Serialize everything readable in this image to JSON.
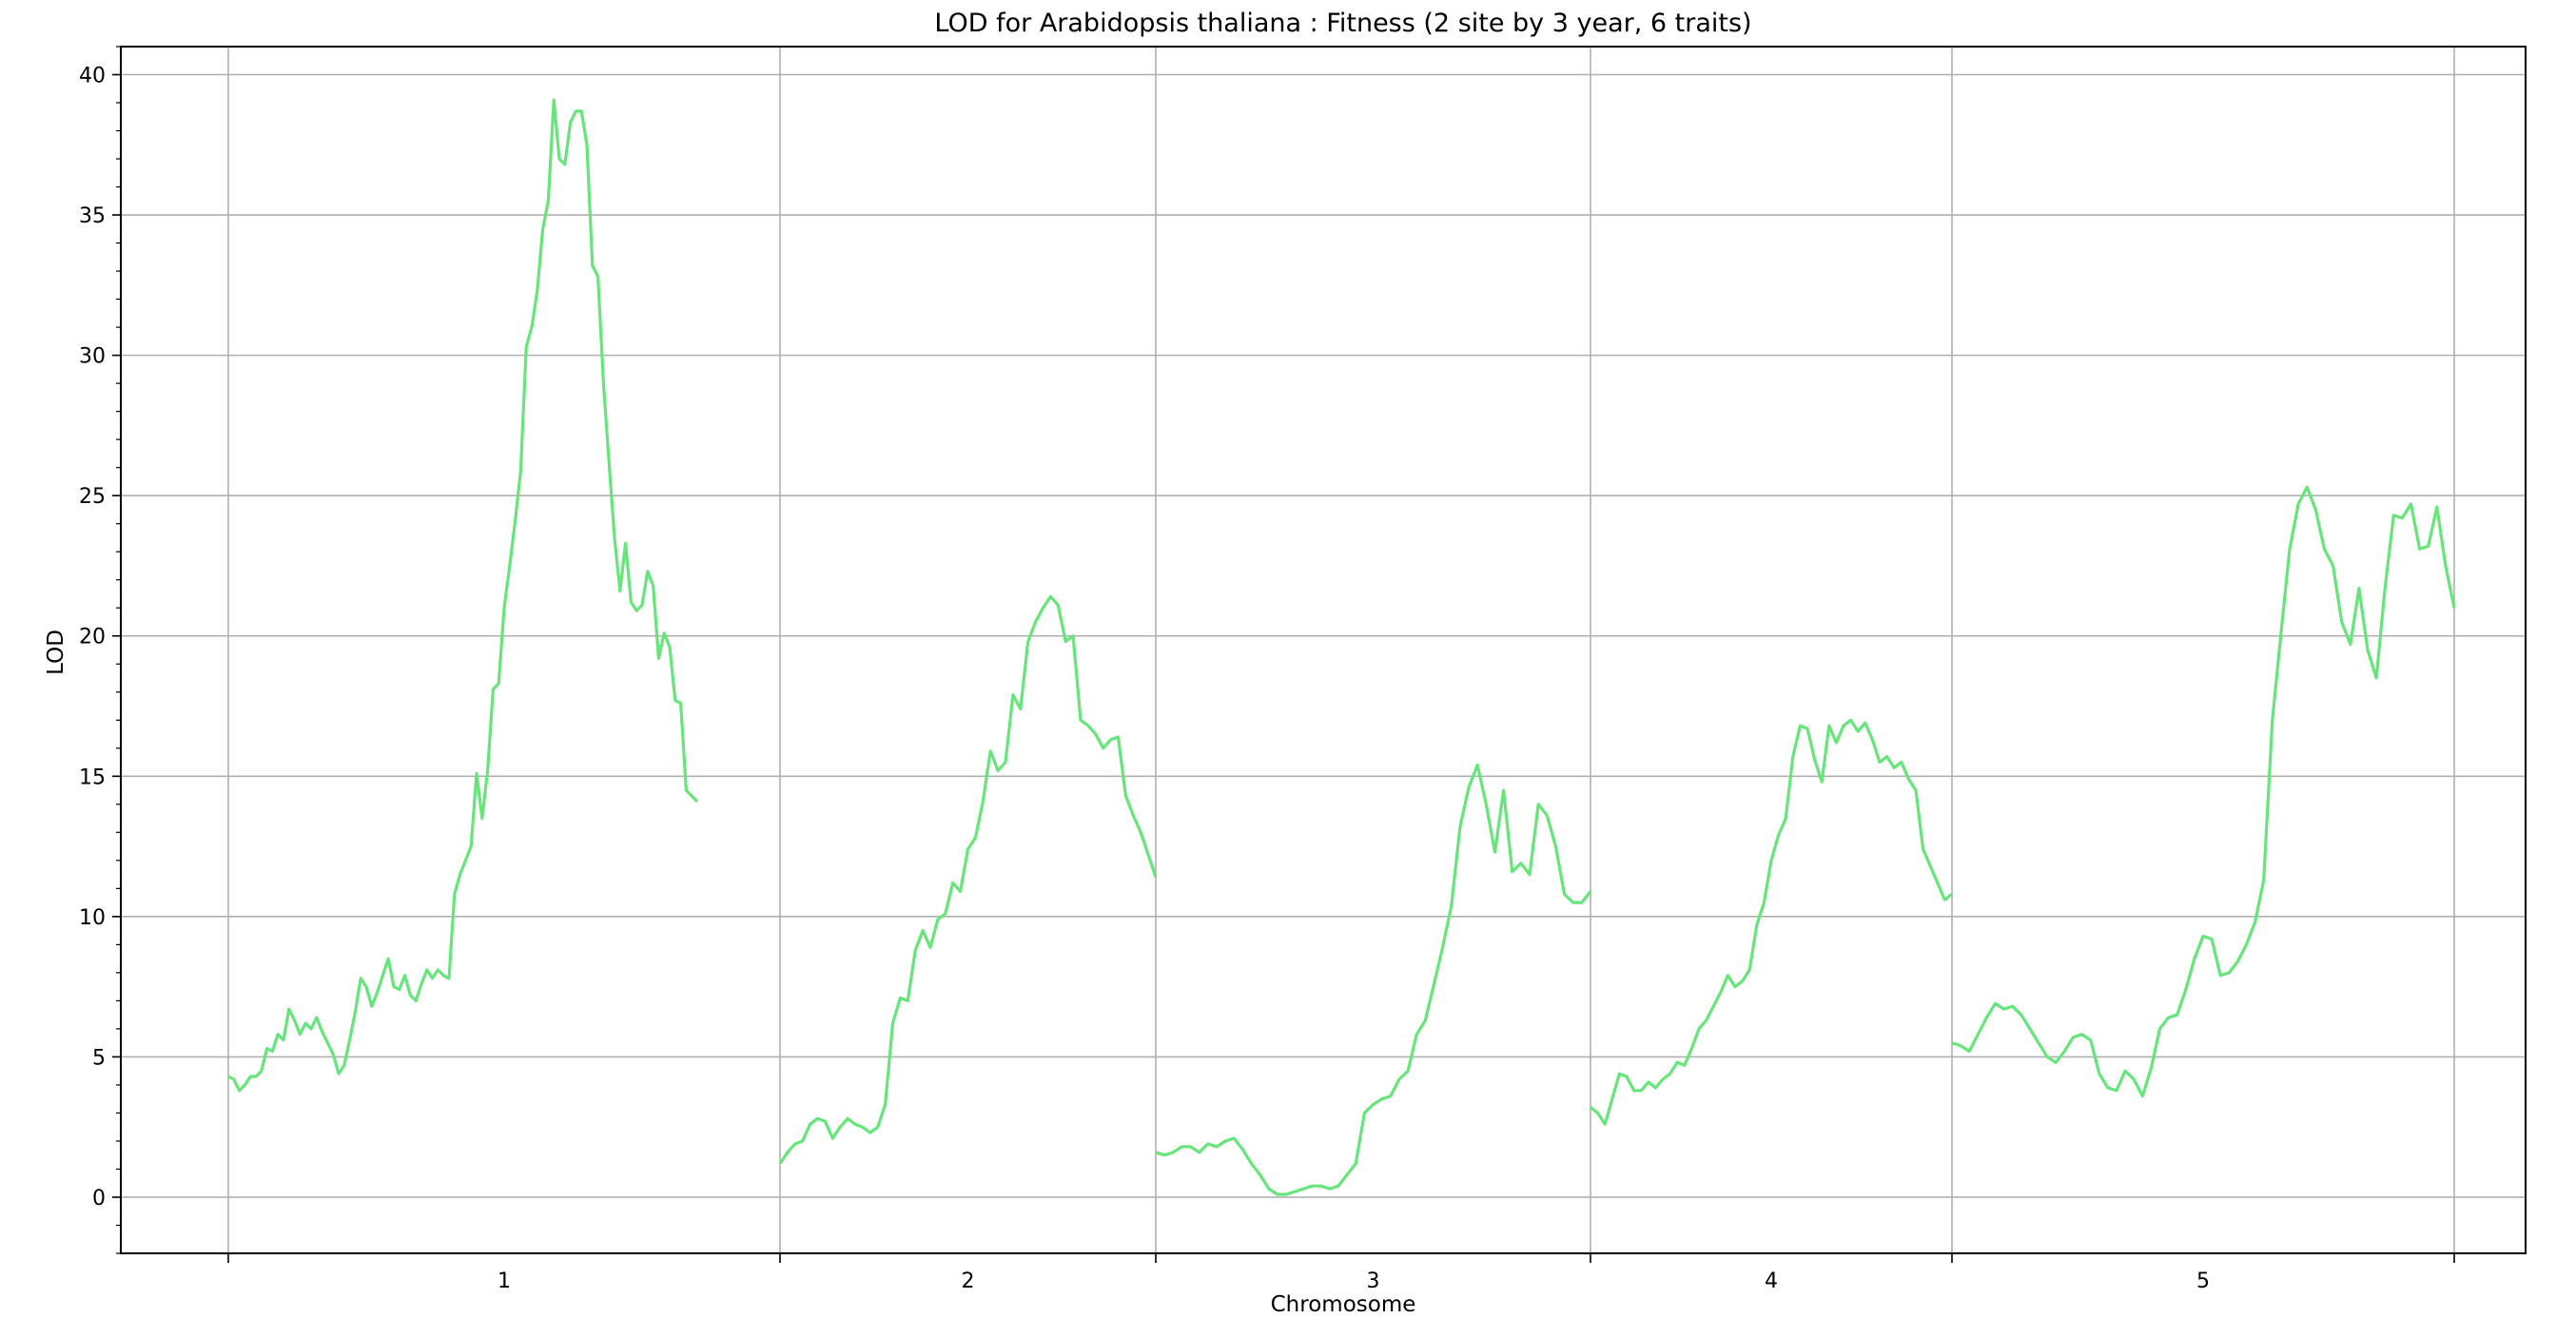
{
  "chart_data": {
    "type": "line",
    "title": "LOD for Arabidopsis thaliana : Fitness (2 site by 3 year, 6 traits)",
    "xlabel": "Chromosome",
    "ylabel": "LOD",
    "ylim": [
      -2,
      41
    ],
    "yticks": [
      0,
      5,
      10,
      15,
      20,
      25,
      30,
      35,
      40
    ],
    "grid": true,
    "line_color": "#66e67a",
    "x_axis_note": "x = position within chromosome as fraction (0 = start, 1 = end)",
    "chromosomes": [
      {
        "label": "1",
        "points": [
          [
            0.0,
            4.3
          ],
          [
            0.01,
            4.2
          ],
          [
            0.02,
            3.8
          ],
          [
            0.03,
            4.0
          ],
          [
            0.04,
            4.3
          ],
          [
            0.05,
            4.3
          ],
          [
            0.06,
            4.5
          ],
          [
            0.07,
            5.3
          ],
          [
            0.08,
            5.2
          ],
          [
            0.09,
            5.8
          ],
          [
            0.1,
            5.6
          ],
          [
            0.11,
            6.7
          ],
          [
            0.12,
            6.3
          ],
          [
            0.13,
            5.8
          ],
          [
            0.14,
            6.2
          ],
          [
            0.15,
            6.0
          ],
          [
            0.16,
            6.4
          ],
          [
            0.17,
            5.9
          ],
          [
            0.18,
            5.5
          ],
          [
            0.19,
            5.1
          ],
          [
            0.2,
            4.4
          ],
          [
            0.21,
            4.7
          ],
          [
            0.22,
            5.6
          ],
          [
            0.23,
            6.6
          ],
          [
            0.24,
            7.8
          ],
          [
            0.25,
            7.5
          ],
          [
            0.26,
            6.8
          ],
          [
            0.27,
            7.3
          ],
          [
            0.28,
            7.9
          ],
          [
            0.29,
            8.5
          ],
          [
            0.3,
            7.5
          ],
          [
            0.31,
            7.4
          ],
          [
            0.32,
            7.9
          ],
          [
            0.33,
            7.2
          ],
          [
            0.34,
            7.0
          ],
          [
            0.35,
            7.6
          ],
          [
            0.36,
            8.1
          ],
          [
            0.37,
            7.8
          ],
          [
            0.38,
            8.1
          ],
          [
            0.39,
            7.9
          ],
          [
            0.4,
            7.8
          ],
          [
            0.41,
            10.8
          ],
          [
            0.42,
            11.5
          ],
          [
            0.43,
            12.0
          ],
          [
            0.44,
            12.5
          ],
          [
            0.45,
            15.1
          ],
          [
            0.46,
            13.5
          ],
          [
            0.47,
            15.2
          ],
          [
            0.48,
            18.1
          ],
          [
            0.49,
            18.3
          ],
          [
            0.5,
            21.0
          ],
          [
            0.51,
            22.5
          ],
          [
            0.52,
            24.1
          ],
          [
            0.53,
            25.9
          ],
          [
            0.54,
            30.3
          ],
          [
            0.55,
            31.0
          ],
          [
            0.56,
            32.3
          ],
          [
            0.57,
            34.5
          ],
          [
            0.58,
            35.5
          ],
          [
            0.59,
            39.1
          ],
          [
            0.6,
            37.0
          ],
          [
            0.61,
            36.8
          ],
          [
            0.62,
            38.3
          ],
          [
            0.63,
            38.7
          ],
          [
            0.64,
            38.7
          ],
          [
            0.65,
            37.5
          ],
          [
            0.66,
            33.2
          ],
          [
            0.67,
            32.8
          ],
          [
            0.68,
            29.0
          ],
          [
            0.69,
            26.2
          ],
          [
            0.7,
            23.5
          ],
          [
            0.71,
            21.6
          ],
          [
            0.72,
            23.3
          ],
          [
            0.73,
            21.2
          ],
          [
            0.74,
            20.9
          ],
          [
            0.75,
            21.1
          ],
          [
            0.76,
            22.3
          ],
          [
            0.77,
            21.8
          ],
          [
            0.78,
            19.2
          ],
          [
            0.79,
            20.1
          ],
          [
            0.8,
            19.6
          ],
          [
            0.81,
            17.7
          ],
          [
            0.82,
            17.6
          ],
          [
            0.83,
            14.5
          ],
          [
            0.84,
            14.3
          ],
          [
            0.85,
            14.1
          ]
        ]
      },
      {
        "label": "2",
        "points": [
          [
            0.0,
            1.2
          ],
          [
            0.02,
            1.6
          ],
          [
            0.04,
            1.9
          ],
          [
            0.06,
            2.0
          ],
          [
            0.08,
            2.6
          ],
          [
            0.1,
            2.8
          ],
          [
            0.12,
            2.7
          ],
          [
            0.14,
            2.1
          ],
          [
            0.16,
            2.5
          ],
          [
            0.18,
            2.8
          ],
          [
            0.2,
            2.6
          ],
          [
            0.22,
            2.5
          ],
          [
            0.24,
            2.3
          ],
          [
            0.26,
            2.5
          ],
          [
            0.28,
            3.3
          ],
          [
            0.3,
            6.2
          ],
          [
            0.32,
            7.1
          ],
          [
            0.34,
            7.0
          ],
          [
            0.36,
            8.8
          ],
          [
            0.38,
            9.5
          ],
          [
            0.4,
            8.9
          ],
          [
            0.42,
            9.9
          ],
          [
            0.44,
            10.1
          ],
          [
            0.46,
            11.2
          ],
          [
            0.48,
            10.9
          ],
          [
            0.5,
            12.4
          ],
          [
            0.52,
            12.8
          ],
          [
            0.54,
            14.1
          ],
          [
            0.56,
            15.9
          ],
          [
            0.58,
            15.2
          ],
          [
            0.6,
            15.5
          ],
          [
            0.62,
            17.9
          ],
          [
            0.64,
            17.4
          ],
          [
            0.66,
            19.8
          ],
          [
            0.68,
            20.5
          ],
          [
            0.7,
            21.0
          ],
          [
            0.72,
            21.4
          ],
          [
            0.74,
            21.1
          ],
          [
            0.76,
            19.8
          ],
          [
            0.78,
            20.0
          ],
          [
            0.8,
            17.0
          ],
          [
            0.82,
            16.8
          ],
          [
            0.84,
            16.5
          ],
          [
            0.86,
            16.0
          ],
          [
            0.88,
            16.3
          ],
          [
            0.9,
            16.4
          ],
          [
            0.92,
            14.3
          ],
          [
            0.94,
            13.6
          ],
          [
            0.96,
            13.0
          ],
          [
            0.98,
            12.2
          ],
          [
            1.0,
            11.4
          ]
        ]
      },
      {
        "label": "3",
        "points": [
          [
            0.0,
            1.6
          ],
          [
            0.02,
            1.5
          ],
          [
            0.04,
            1.6
          ],
          [
            0.06,
            1.8
          ],
          [
            0.08,
            1.8
          ],
          [
            0.1,
            1.6
          ],
          [
            0.12,
            1.9
          ],
          [
            0.14,
            1.8
          ],
          [
            0.16,
            2.0
          ],
          [
            0.18,
            2.1
          ],
          [
            0.2,
            1.7
          ],
          [
            0.22,
            1.2
          ],
          [
            0.24,
            0.8
          ],
          [
            0.26,
            0.3
          ],
          [
            0.28,
            0.1
          ],
          [
            0.3,
            0.1
          ],
          [
            0.32,
            0.2
          ],
          [
            0.34,
            0.3
          ],
          [
            0.36,
            0.4
          ],
          [
            0.38,
            0.4
          ],
          [
            0.4,
            0.3
          ],
          [
            0.42,
            0.4
          ],
          [
            0.44,
            0.8
          ],
          [
            0.46,
            1.2
          ],
          [
            0.48,
            3.0
          ],
          [
            0.5,
            3.3
          ],
          [
            0.52,
            3.5
          ],
          [
            0.54,
            3.6
          ],
          [
            0.56,
            4.2
          ],
          [
            0.58,
            4.5
          ],
          [
            0.6,
            5.8
          ],
          [
            0.62,
            6.3
          ],
          [
            0.64,
            7.6
          ],
          [
            0.66,
            8.9
          ],
          [
            0.68,
            10.4
          ],
          [
            0.7,
            13.2
          ],
          [
            0.72,
            14.6
          ],
          [
            0.74,
            15.4
          ],
          [
            0.76,
            14.0
          ],
          [
            0.78,
            12.3
          ],
          [
            0.8,
            14.5
          ],
          [
            0.82,
            11.6
          ],
          [
            0.84,
            11.9
          ],
          [
            0.86,
            11.5
          ],
          [
            0.88,
            14.0
          ],
          [
            0.9,
            13.6
          ],
          [
            0.92,
            12.5
          ],
          [
            0.94,
            10.8
          ],
          [
            0.96,
            10.5
          ],
          [
            0.98,
            10.5
          ],
          [
            1.0,
            10.9
          ]
        ]
      },
      {
        "label": "4",
        "points": [
          [
            0.0,
            3.2
          ],
          [
            0.02,
            3.0
          ],
          [
            0.04,
            2.6
          ],
          [
            0.06,
            3.5
          ],
          [
            0.08,
            4.4
          ],
          [
            0.1,
            4.3
          ],
          [
            0.12,
            3.8
          ],
          [
            0.14,
            3.8
          ],
          [
            0.16,
            4.1
          ],
          [
            0.18,
            3.9
          ],
          [
            0.2,
            4.2
          ],
          [
            0.22,
            4.4
          ],
          [
            0.24,
            4.8
          ],
          [
            0.26,
            4.7
          ],
          [
            0.28,
            5.3
          ],
          [
            0.3,
            6.0
          ],
          [
            0.32,
            6.3
          ],
          [
            0.34,
            6.8
          ],
          [
            0.36,
            7.3
          ],
          [
            0.38,
            7.9
          ],
          [
            0.4,
            7.5
          ],
          [
            0.42,
            7.7
          ],
          [
            0.44,
            8.1
          ],
          [
            0.46,
            9.7
          ],
          [
            0.48,
            10.5
          ],
          [
            0.5,
            12.0
          ],
          [
            0.52,
            12.9
          ],
          [
            0.54,
            13.5
          ],
          [
            0.56,
            15.7
          ],
          [
            0.58,
            16.8
          ],
          [
            0.6,
            16.7
          ],
          [
            0.62,
            15.6
          ],
          [
            0.64,
            14.8
          ],
          [
            0.66,
            16.8
          ],
          [
            0.68,
            16.2
          ],
          [
            0.7,
            16.8
          ],
          [
            0.72,
            17.0
          ],
          [
            0.74,
            16.6
          ],
          [
            0.76,
            16.9
          ],
          [
            0.78,
            16.3
          ],
          [
            0.8,
            15.5
          ],
          [
            0.82,
            15.7
          ],
          [
            0.84,
            15.3
          ],
          [
            0.86,
            15.5
          ],
          [
            0.88,
            14.9
          ],
          [
            0.9,
            14.5
          ],
          [
            0.92,
            12.4
          ],
          [
            0.94,
            11.8
          ],
          [
            0.96,
            11.2
          ],
          [
            0.98,
            10.6
          ],
          [
            1.0,
            10.8
          ]
        ]
      },
      {
        "label": "5",
        "points": [
          [
            0.0,
            5.5
          ],
          [
            0.02,
            5.4
          ],
          [
            0.04,
            5.2
          ],
          [
            0.06,
            5.8
          ],
          [
            0.08,
            6.4
          ],
          [
            0.1,
            6.9
          ],
          [
            0.12,
            6.7
          ],
          [
            0.14,
            6.8
          ],
          [
            0.16,
            6.5
          ],
          [
            0.18,
            6.0
          ],
          [
            0.2,
            5.5
          ],
          [
            0.22,
            5.0
          ],
          [
            0.24,
            4.8
          ],
          [
            0.26,
            5.2
          ],
          [
            0.28,
            5.7
          ],
          [
            0.3,
            5.8
          ],
          [
            0.32,
            5.6
          ],
          [
            0.34,
            4.4
          ],
          [
            0.36,
            3.9
          ],
          [
            0.38,
            3.8
          ],
          [
            0.4,
            4.5
          ],
          [
            0.42,
            4.2
          ],
          [
            0.44,
            3.6
          ],
          [
            0.46,
            4.6
          ],
          [
            0.48,
            6.0
          ],
          [
            0.5,
            6.4
          ],
          [
            0.52,
            6.5
          ],
          [
            0.54,
            7.4
          ],
          [
            0.56,
            8.5
          ],
          [
            0.58,
            9.3
          ],
          [
            0.6,
            9.2
          ],
          [
            0.62,
            7.9
          ],
          [
            0.64,
            8.0
          ],
          [
            0.66,
            8.4
          ],
          [
            0.68,
            9.0
          ],
          [
            0.7,
            9.8
          ],
          [
            0.72,
            11.3
          ],
          [
            0.74,
            17.0
          ],
          [
            0.76,
            20.1
          ],
          [
            0.78,
            23.1
          ],
          [
            0.8,
            24.7
          ],
          [
            0.82,
            25.3
          ],
          [
            0.84,
            24.5
          ],
          [
            0.86,
            23.1
          ],
          [
            0.88,
            22.5
          ],
          [
            0.9,
            20.5
          ],
          [
            0.92,
            19.7
          ],
          [
            0.94,
            21.7
          ],
          [
            0.96,
            19.5
          ],
          [
            0.98,
            18.5
          ],
          [
            1.0,
            21.7
          ],
          [
            1.02,
            24.3
          ],
          [
            1.04,
            24.2
          ],
          [
            1.06,
            24.7
          ],
          [
            1.08,
            23.1
          ],
          [
            1.1,
            23.2
          ],
          [
            1.12,
            24.6
          ],
          [
            1.14,
            22.5
          ],
          [
            1.16,
            21.0
          ]
        ]
      }
    ]
  }
}
